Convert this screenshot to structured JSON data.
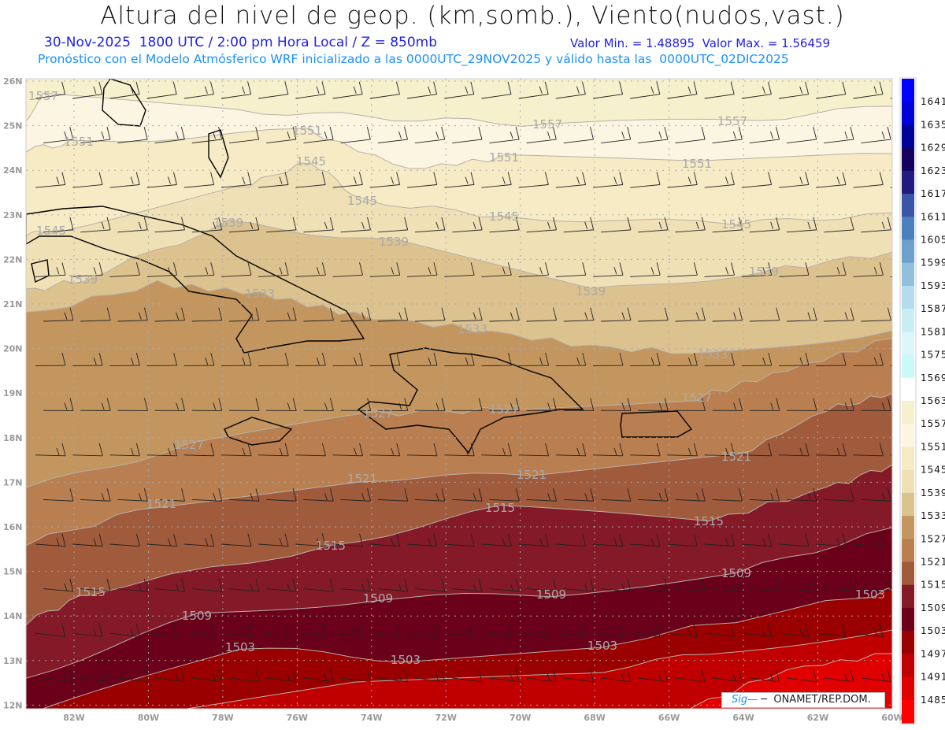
{
  "header": {
    "title": "Altura del nivel de geop. (km,somb.), Viento(nudos,vast.)",
    "line1": "30-Nov-2025  1800 UTC / 2:00 pm Hora Local / Z = 850mb",
    "line1_values": "Valor Min. = 1.48895  Valor Max. = 1.56459",
    "line2": "Pronóstico con el Modelo Atmósferico WRF inicializado a las 0000UTC_29NOV2025 y válido hasta las  0000UTC_02DIC2025"
  },
  "axes": {
    "lat_labels": [
      "26N",
      "25N",
      "24N",
      "23N",
      "22N",
      "21N",
      "20N",
      "19N",
      "18N",
      "17N",
      "16N",
      "15N",
      "14N",
      "13N",
      "12N"
    ],
    "lon_labels": [
      "82W",
      "80W",
      "78W",
      "76W",
      "74W",
      "72W",
      "70W",
      "68W",
      "66W",
      "64W",
      "62W",
      "60W"
    ]
  },
  "colorbar": {
    "levels": [
      "1641",
      "1635",
      "1629",
      "1623",
      "1617",
      "1611",
      "1605",
      "1599",
      "1593",
      "1587",
      "1581",
      "1575",
      "1569",
      "1563",
      "1557",
      "1551",
      "1545",
      "1539",
      "1533",
      "1527",
      "1521",
      "1515",
      "1509",
      "1503",
      "1497",
      "1491",
      "1485"
    ],
    "colors": [
      "#0000ff",
      "#0000d8",
      "#00009a",
      "#14005e",
      "#231a80",
      "#3a55a8",
      "#4a80c0",
      "#6ea0cc",
      "#90c0dc",
      "#b4dcec",
      "#c8eef4",
      "#dcf6fa",
      "#c8fafa",
      "#ffffff",
      "#f6f0cc",
      "#fbf5e2",
      "#f6ebc4",
      "#efe0b6",
      "#dcc28e",
      "#c4965f",
      "#b97f50",
      "#a05a3c",
      "#841a28",
      "#6a0019",
      "#9a0000",
      "#c00000",
      "#e00000",
      "#ff0000"
    ]
  },
  "contour_labels": [
    "1557",
    "1557",
    "1557",
    "1551",
    "1551",
    "1551",
    "1551",
    "1545",
    "1545",
    "1545",
    "1545",
    "1545",
    "1539",
    "1539",
    "1539",
    "1539",
    "1539",
    "1533",
    "1533",
    "1533",
    "1527",
    "1527",
    "1527",
    "1527",
    "1521",
    "1521",
    "1521",
    "1521",
    "1515",
    "1515",
    "1515",
    "1515",
    "1509",
    "1509",
    "1509",
    "1509",
    "1503",
    "1503",
    "1503",
    "1503"
  ],
  "credit": {
    "signature": "Sig—",
    "text": " ─  ONAMET/REP.DOM."
  }
}
